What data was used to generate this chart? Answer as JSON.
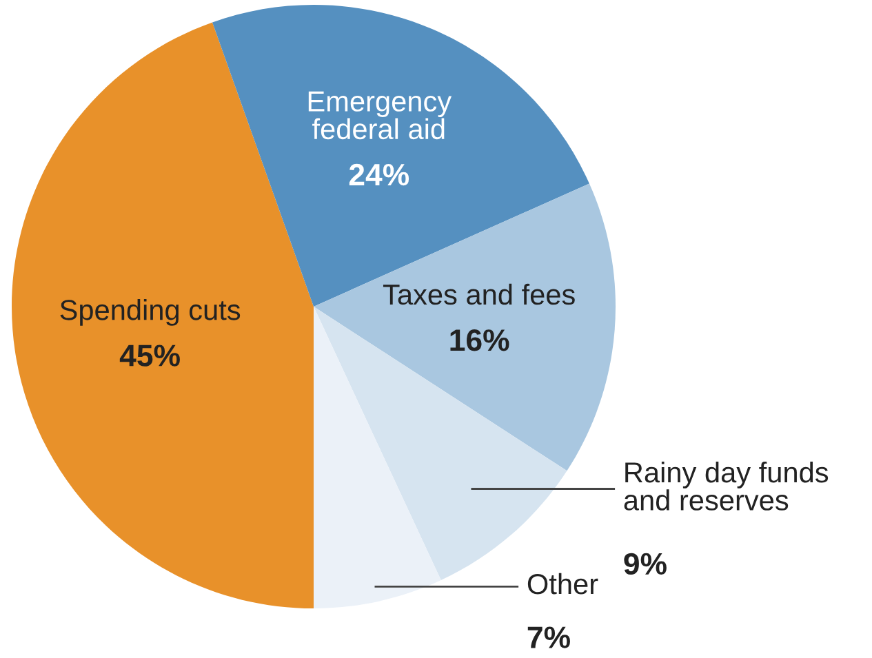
{
  "chart_data": {
    "type": "pie",
    "categories": [
      "Spending cuts",
      "Emergency\nfederal aid",
      "Taxes and fees",
      "Rainy day funds\nand reserves",
      "Other"
    ],
    "values": [
      45,
      24,
      16,
      9,
      7
    ],
    "value_labels": [
      "45%",
      "24%",
      "16%",
      "9%",
      "7%"
    ],
    "colors": [
      "#e8912a",
      "#5590c0",
      "#a9c7e0",
      "#d6e4f0",
      "#ebf1f8"
    ]
  }
}
